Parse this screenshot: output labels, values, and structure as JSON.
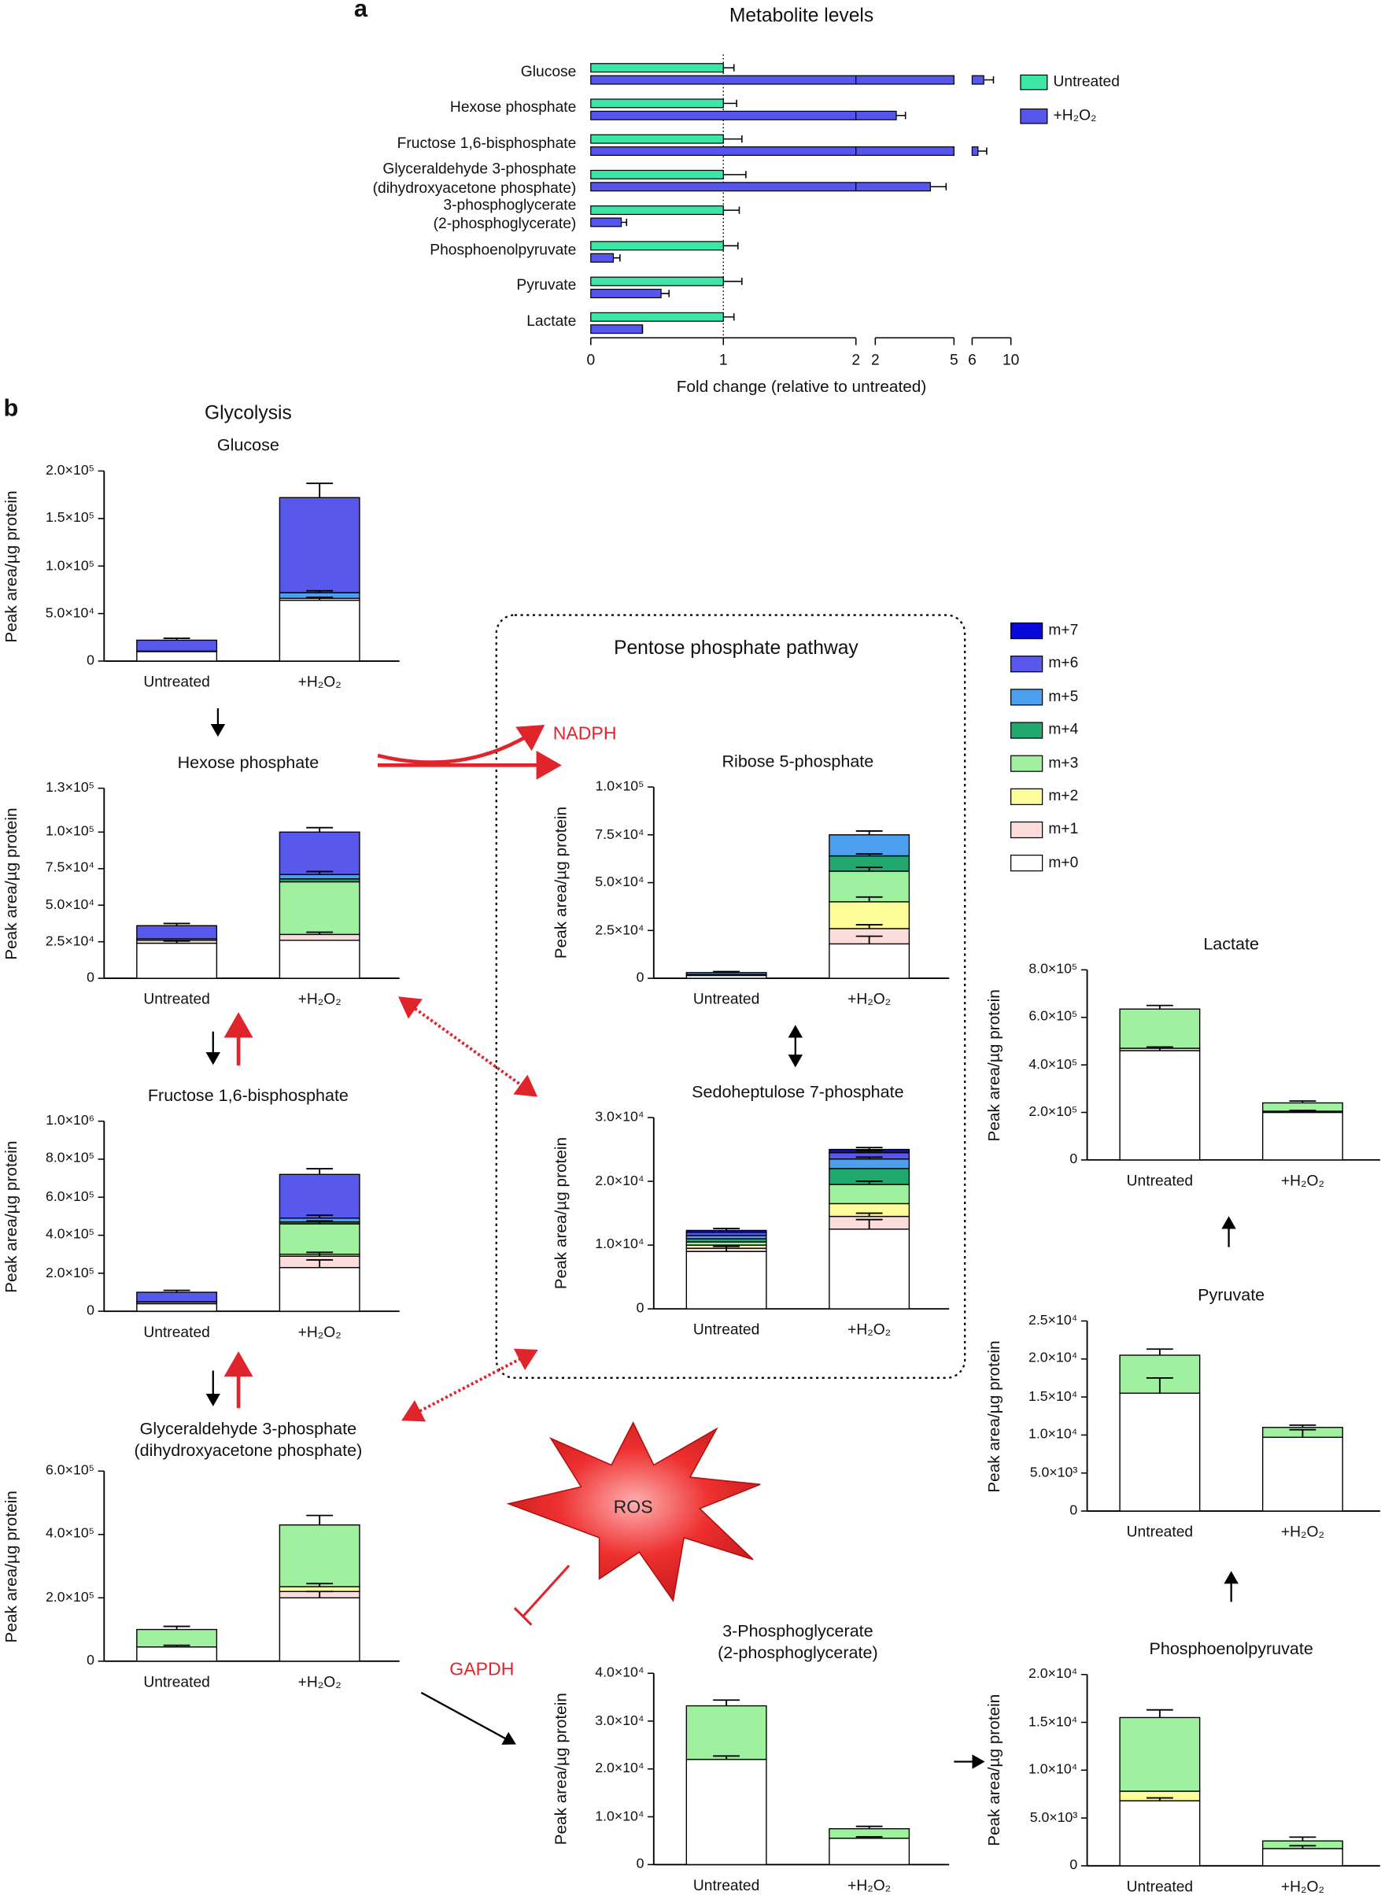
{
  "figure": {
    "panel_a": "a",
    "panel_b": "b",
    "glycolysis": "Glycolysis",
    "ppp": "Pentose phosphate pathway",
    "nadph": "NADPH",
    "ros": "ROS",
    "gapdh": "GAPDH",
    "isotopologues": [
      {
        "name": "m+0",
        "color": "#ffffff"
      },
      {
        "name": "m+1",
        "color": "#fddcdc"
      },
      {
        "name": "m+2",
        "color": "#fdfd9a"
      },
      {
        "name": "m+3",
        "color": "#9ff09f"
      },
      {
        "name": "m+4",
        "color": "#20a86e"
      },
      {
        "name": "m+5",
        "color": "#4d9ff0"
      },
      {
        "name": "m+6",
        "color": "#5858ec"
      },
      {
        "name": "m+7",
        "color": "#0808d8"
      }
    ]
  },
  "chart_data": [
    {
      "type": "hbar_broken",
      "title": "Metabolite levels",
      "x_label": "Fold change (relative to untreated)",
      "categories": [
        "Glucose",
        "Hexose phosphate",
        "Fructose 1,6-bisphosphate",
        "Glyceraldehyde 3-phosphate\n(dihydroxyacetone phosphate)",
        "3-phosphoglycerate\n(2-phosphoglycerate)",
        "Phosphoenolpyruvate",
        "Pyruvate",
        "Lactate"
      ],
      "series": [
        {
          "name": "Untreated",
          "color": "#3ee6a6",
          "values": [
            1,
            1,
            1,
            1,
            1,
            1,
            1,
            1
          ],
          "errors": [
            0.08,
            0.1,
            0.14,
            0.17,
            0.12,
            0.11,
            0.14,
            0.08
          ]
        },
        {
          "name": "+H₂O₂",
          "color": "#5656ee",
          "values": [
            7.2,
            2.8,
            6.6,
            4.1,
            0.23,
            0.17,
            0.53,
            0.39
          ],
          "errors": [
            1.0,
            0.35,
            0.9,
            0.6,
            0.04,
            0.05,
            0.06,
            0
          ]
        }
      ],
      "x_segments": [
        {
          "xlim": [
            0,
            2
          ],
          "xticks": [
            0,
            1,
            2
          ]
        },
        {
          "xlim": [
            2,
            5
          ],
          "xticks": [
            2,
            5
          ]
        },
        {
          "xlim": [
            6,
            10
          ],
          "xticks": [
            6,
            10
          ]
        }
      ],
      "reference_line": 1
    },
    {
      "type": "stacked_bar",
      "title": "Glucose",
      "y_label": "Peak area/µg protein",
      "categories": [
        "Untreated",
        "+H₂O₂"
      ],
      "ylim": [
        0,
        200000
      ],
      "yticks": [
        0,
        {
          "value": 50000,
          "label": "5.0×10⁴"
        },
        {
          "value": 100000,
          "label": "1.0×10⁵"
        },
        {
          "value": 150000,
          "label": "1.5×10⁵"
        },
        {
          "value": 200000,
          "label": "2.0×10⁵"
        }
      ],
      "series": [
        {
          "values": [
            10000,
            64000
          ],
          "errors": [
            null,
            3000
          ]
        },
        {
          "values": [
            0,
            2000
          ]
        },
        {
          "values": [
            0,
            0
          ]
        },
        {
          "values": [
            0,
            0
          ]
        },
        {
          "values": [
            0,
            0
          ]
        },
        {
          "values": [
            500,
            6000
          ],
          "errors": [
            null,
            2000
          ]
        },
        {
          "values": [
            11500,
            100000
          ],
          "errors": [
            2000,
            15000
          ]
        }
      ]
    },
    {
      "type": "stacked_bar",
      "title": "Hexose phosphate",
      "y_label": "Peak area/µg protein",
      "categories": [
        "Untreated",
        "+H₂O₂"
      ],
      "ylim": [
        0,
        130000
      ],
      "yticks": [
        0,
        {
          "value": 25000,
          "label": "2.5×10⁴"
        },
        {
          "value": 50000,
          "label": "5.0×10⁴"
        },
        {
          "value": 75000,
          "label": "7.5×10⁴"
        },
        {
          "value": 100000,
          "label": "1.0×10⁵"
        },
        {
          "value": 130000,
          "label": "1.3×10⁵"
        }
      ],
      "series": [
        {
          "values": [
            24000,
            26000
          ],
          "errors": [
            1500,
            null
          ]
        },
        {
          "values": [
            2000,
            4000
          ],
          "errors": [
            null,
            1500
          ]
        },
        {
          "values": [
            0,
            0
          ]
        },
        {
          "values": [
            1000,
            36000
          ]
        },
        {
          "values": [
            0,
            2000
          ]
        },
        {
          "values": [
            0,
            3000
          ],
          "errors": [
            null,
            2000
          ]
        },
        {
          "values": [
            9000,
            29000
          ],
          "errors": [
            1500,
            3000
          ]
        }
      ]
    },
    {
      "type": "stacked_bar",
      "title": "Fructose 1,6-bisphosphate",
      "y_label": "Peak area/µg protein",
      "categories": [
        "Untreated",
        "+H₂O₂"
      ],
      "ylim": [
        0,
        1000000
      ],
      "yticks": [
        0,
        {
          "value": 200000,
          "label": "2.0×10⁵"
        },
        {
          "value": 400000,
          "label": "4.0×10⁵"
        },
        {
          "value": 600000,
          "label": "6.0×10⁵"
        },
        {
          "value": 800000,
          "label": "8.0×10⁵"
        },
        {
          "value": 1000000,
          "label": "1.0×10⁶"
        }
      ],
      "series": [
        {
          "values": [
            40000,
            230000
          ],
          "errors": [
            null,
            40000
          ]
        },
        {
          "values": [
            0,
            60000
          ],
          "errors": [
            null,
            20000
          ]
        },
        {
          "values": [
            0,
            10000
          ]
        },
        {
          "values": [
            0,
            160000
          ],
          "errors": [
            null,
            15000
          ]
        },
        {
          "values": [
            0,
            10000
          ]
        },
        {
          "values": [
            10000,
            20000
          ],
          "errors": [
            null,
            15000
          ]
        },
        {
          "values": [
            50000,
            230000
          ],
          "errors": [
            10000,
            30000
          ]
        }
      ]
    },
    {
      "type": "stacked_bar",
      "title": "Glyceraldehyde 3-phosphate\n(dihydroxyacetone phosphate)",
      "y_label": "Peak area/µg protein",
      "categories": [
        "Untreated",
        "+H₂O₂"
      ],
      "ylim": [
        0,
        600000
      ],
      "yticks": [
        0,
        {
          "value": 200000,
          "label": "2.0×10⁵"
        },
        {
          "value": 400000,
          "label": "4.0×10⁵"
        },
        {
          "value": 600000,
          "label": "6.0×10⁵"
        }
      ],
      "series": [
        {
          "values": [
            45000,
            200000
          ],
          "errors": [
            5000,
            20000
          ]
        },
        {
          "values": [
            0,
            20000
          ]
        },
        {
          "values": [
            0,
            15000
          ],
          "errors": [
            null,
            10000
          ]
        },
        {
          "values": [
            55000,
            195000
          ],
          "errors": [
            10000,
            30000
          ]
        }
      ]
    },
    {
      "type": "stacked_bar",
      "title": "Ribose 5-phosphate",
      "y_label": "Peak area/µg protein",
      "categories": [
        "Untreated",
        "+H₂O₂"
      ],
      "ylim": [
        0,
        100000
      ],
      "yticks": [
        0,
        {
          "value": 25000,
          "label": "2.5×10⁴"
        },
        {
          "value": 50000,
          "label": "5.0×10⁴"
        },
        {
          "value": 75000,
          "label": "7.5×10⁴"
        },
        {
          "value": 100000,
          "label": "1.0×10⁵"
        }
      ],
      "series": [
        {
          "values": [
            1500,
            18000
          ],
          "errors": [
            null,
            4000
          ]
        },
        {
          "values": [
            0,
            8000
          ],
          "errors": [
            null,
            2000
          ]
        },
        {
          "values": [
            0,
            14000
          ],
          "errors": [
            null,
            2500
          ]
        },
        {
          "values": [
            500,
            16000
          ],
          "errors": [
            null,
            2000
          ]
        },
        {
          "values": [
            0,
            8000
          ],
          "errors": [
            null,
            1000
          ]
        },
        {
          "values": [
            1000,
            11000
          ],
          "errors": [
            500,
            2000
          ]
        }
      ]
    },
    {
      "type": "stacked_bar",
      "title": "Sedoheptulose 7-phosphate",
      "y_label": "Peak area/µg protein",
      "categories": [
        "Untreated",
        "+H₂O₂"
      ],
      "ylim": [
        0,
        30000
      ],
      "yticks": [
        0,
        {
          "value": 10000,
          "label": "1.0×10⁴"
        },
        {
          "value": 20000,
          "label": "2.0×10⁴"
        },
        {
          "value": 30000,
          "label": "3.0×10⁴"
        }
      ],
      "series": [
        {
          "values": [
            9000,
            12500
          ],
          "errors": [
            800,
            1500
          ]
        },
        {
          "values": [
            500,
            2000
          ],
          "errors": [
            null,
            500
          ]
        },
        {
          "values": [
            500,
            2000
          ]
        },
        {
          "values": [
            500,
            3000
          ],
          "errors": [
            null,
            500
          ]
        },
        {
          "values": [
            500,
            2500
          ]
        },
        {
          "values": [
            500,
            1500
          ],
          "errors": [
            null,
            300
          ]
        },
        {
          "values": [
            500,
            1000
          ],
          "errors": [
            null,
            300
          ]
        },
        {
          "values": [
            300,
            500
          ],
          "errors": [
            300,
            300
          ]
        }
      ]
    },
    {
      "type": "stacked_bar",
      "title": "Lactate",
      "y_label": "Peak area/µg protein",
      "categories": [
        "Untreated",
        "+H₂O₂"
      ],
      "ylim": [
        0,
        800000
      ],
      "yticks": [
        0,
        {
          "value": 200000,
          "label": "2.0×10⁵"
        },
        {
          "value": 400000,
          "label": "4.0×10⁵"
        },
        {
          "value": 600000,
          "label": "6.0×10⁵"
        },
        {
          "value": 800000,
          "label": "8.0×10⁵"
        }
      ],
      "series": [
        {
          "values": [
            460000,
            200000
          ],
          "errors": [
            15000,
            8000
          ]
        },
        {
          "values": [
            10000,
            5000
          ]
        },
        {
          "values": [
            0,
            0
          ]
        },
        {
          "values": [
            165000,
            35000
          ],
          "errors": [
            15000,
            8000
          ]
        }
      ]
    },
    {
      "type": "stacked_bar",
      "title": "Pyruvate",
      "y_label": "Peak area/µg protein",
      "categories": [
        "Untreated",
        "+H₂O₂"
      ],
      "ylim": [
        0,
        25000
      ],
      "yticks": [
        0,
        {
          "value": 5000,
          "label": "5.0×10³"
        },
        {
          "value": 10000,
          "label": "1.0×10⁴"
        },
        {
          "value": 15000,
          "label": "1.5×10⁴"
        },
        {
          "value": 20000,
          "label": "2.0×10⁴"
        },
        {
          "value": 25000,
          "label": "2.5×10⁴"
        }
      ],
      "series": [
        {
          "values": [
            15500,
            9700
          ],
          "errors": [
            2000,
            1000
          ]
        },
        {
          "values": [
            0,
            0
          ]
        },
        {
          "values": [
            0,
            0
          ]
        },
        {
          "values": [
            5000,
            1300
          ],
          "errors": [
            800,
            300
          ]
        }
      ]
    },
    {
      "type": "stacked_bar",
      "title": "3-Phosphoglycerate\n(2-phosphoglycerate)",
      "y_label": "Peak area/µg protein",
      "categories": [
        "Untreated",
        "+H₂O₂"
      ],
      "ylim": [
        0,
        40000
      ],
      "yticks": [
        0,
        {
          "value": 10000,
          "label": "1.0×10⁴"
        },
        {
          "value": 20000,
          "label": "2.0×10⁴"
        },
        {
          "value": 30000,
          "label": "3.0×10⁴"
        },
        {
          "value": 40000,
          "label": "4.0×10⁴"
        }
      ],
      "series": [
        {
          "values": [
            22000,
            5500
          ],
          "errors": [
            700,
            300
          ]
        },
        {
          "values": [
            0,
            0
          ]
        },
        {
          "values": [
            0,
            0
          ]
        },
        {
          "values": [
            11200,
            2000
          ],
          "errors": [
            1200,
            500
          ]
        }
      ]
    },
    {
      "type": "stacked_bar",
      "title": "Phosphoenolpyruvate",
      "y_label": "Peak area/µg protein",
      "categories": [
        "Untreated",
        "+H₂O₂"
      ],
      "ylim": [
        0,
        20000
      ],
      "yticks": [
        0,
        {
          "value": 5000,
          "label": "5.0×10³"
        },
        {
          "value": 10000,
          "label": "1.0×10⁴"
        },
        {
          "value": 15000,
          "label": "1.5×10⁴"
        },
        {
          "value": 20000,
          "label": "2.0×10⁴"
        }
      ],
      "series": [
        {
          "values": [
            6800,
            1800
          ],
          "errors": [
            300,
            300
          ]
        },
        {
          "values": [
            0,
            0
          ]
        },
        {
          "values": [
            1000,
            0
          ]
        },
        {
          "values": [
            7700,
            800
          ],
          "errors": [
            800,
            400
          ]
        }
      ]
    }
  ]
}
